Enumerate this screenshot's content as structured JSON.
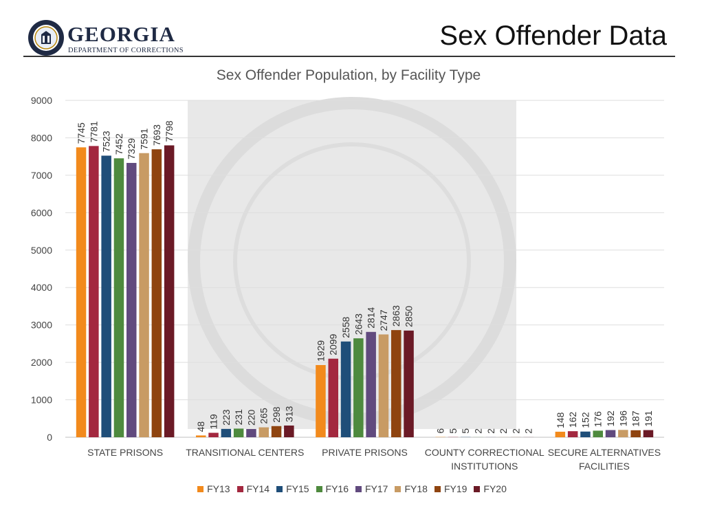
{
  "header": {
    "org_name": "GEORGIA",
    "org_dept": "DEPARTMENT OF CORRECTIONS",
    "seal_text": "DEPARTMENT OF CORRECTIONS",
    "page_title": "Sex Offender Data"
  },
  "chart_data": {
    "type": "bar",
    "title": "Sex Offender Population, by Facility Type",
    "xlabel": "",
    "ylabel": "",
    "ylim": [
      0,
      9000
    ],
    "y_ticks": [
      0,
      1000,
      2000,
      3000,
      4000,
      5000,
      6000,
      7000,
      8000,
      9000
    ],
    "grid": true,
    "legend_position": "bottom",
    "categories": [
      [
        "STATE PRISONS"
      ],
      [
        "TRANSITIONAL CENTERS"
      ],
      [
        "PRIVATE PRISONS"
      ],
      [
        "COUNTY CORRECTIONAL",
        "INSTITUTIONS"
      ],
      [
        "SECURE ALTERNATIVES",
        "FACILITIES"
      ]
    ],
    "series": [
      {
        "name": "FY13",
        "color": "#f28a1c",
        "values": [
          7745,
          48,
          1929,
          6,
          148
        ]
      },
      {
        "name": "FY14",
        "color": "#a3283f",
        "values": [
          7781,
          119,
          2099,
          5,
          162
        ]
      },
      {
        "name": "FY15",
        "color": "#1f4e79",
        "values": [
          7523,
          223,
          2558,
          5,
          152
        ]
      },
      {
        "name": "FY16",
        "color": "#4e8a3e",
        "values": [
          7452,
          231,
          2643,
          2,
          176
        ]
      },
      {
        "name": "FY17",
        "color": "#614a7e",
        "values": [
          7329,
          220,
          2814,
          2,
          192
        ]
      },
      {
        "name": "FY18",
        "color": "#c89b64",
        "values": [
          7591,
          265,
          2747,
          2,
          196
        ]
      },
      {
        "name": "FY19",
        "color": "#8f4410",
        "values": [
          7693,
          298,
          2863,
          2,
          187
        ]
      },
      {
        "name": "FY20",
        "color": "#6b1a26",
        "values": [
          7798,
          313,
          2850,
          2,
          191
        ]
      }
    ]
  }
}
